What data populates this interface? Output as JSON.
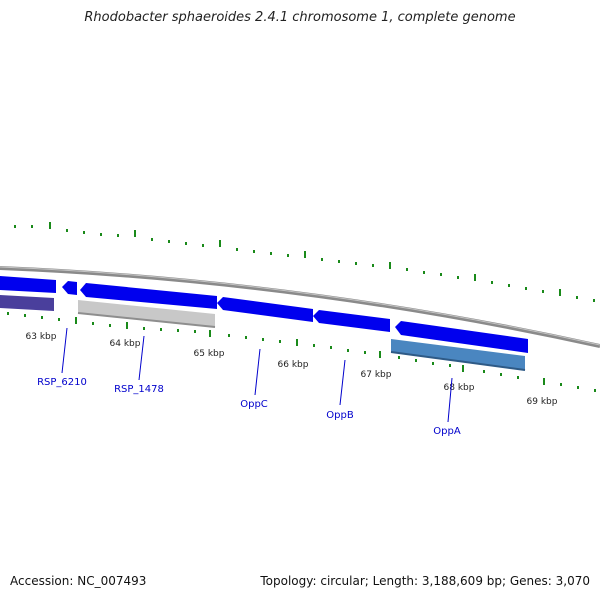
{
  "title": "Rhodobacter sphaeroides 2.4.1 chromosome 1, complete genome",
  "footer": {
    "accession": "Accession: NC_007493",
    "summary": "Topology: circular; Length: 3,188,609 bp; Genes: 3,070"
  },
  "ticks": [
    {
      "label": "63 kbp"
    },
    {
      "label": "64 kbp"
    },
    {
      "label": "65 kbp"
    },
    {
      "label": "66 kbp"
    },
    {
      "label": "67 kbp"
    },
    {
      "label": "68 kbp"
    },
    {
      "label": "69 kbp"
    }
  ],
  "genes": [
    {
      "label": "RSP_6210"
    },
    {
      "label": "RSP_1478"
    },
    {
      "label": "OppC"
    },
    {
      "label": "OppB"
    },
    {
      "label": "OppA"
    }
  ],
  "colors": {
    "cds": "#0000ee",
    "gene_light": "#c8c8c8",
    "gene_steel": "#4a86c0",
    "gene_dark": "#4a3f9c",
    "backbone": "#8a8a8a",
    "tick": "#1a8a1a",
    "gene_label": "#0000cc"
  }
}
